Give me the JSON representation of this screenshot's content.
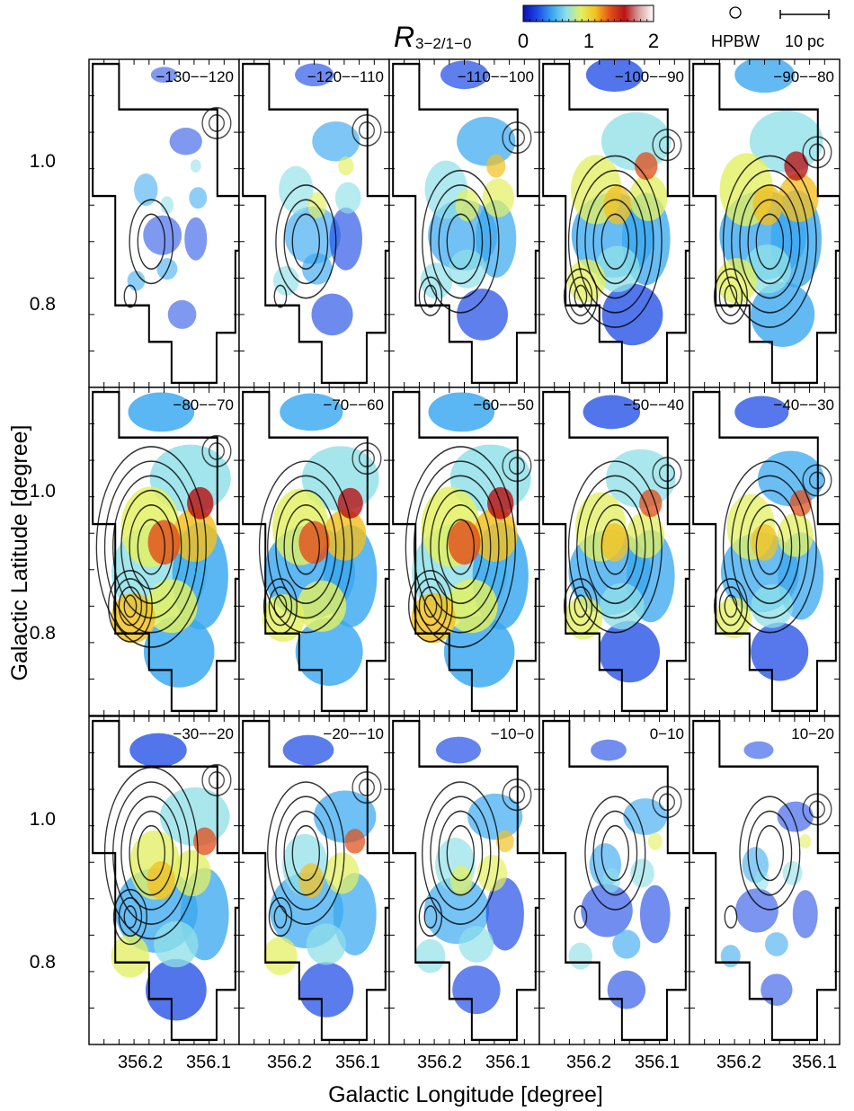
{
  "figure": {
    "colorbar": {
      "label_main": "R",
      "label_sub": "3−2/1−0",
      "ticks": [
        "0",
        "1",
        "2"
      ],
      "stops": [
        "#0a0fb5",
        "#1e4be6",
        "#39a8f0",
        "#8fe0e8",
        "#e3f060",
        "#f3c020",
        "#e0501c",
        "#b81416",
        "#d8a0a0",
        "#ffffff"
      ]
    },
    "beam_label": "HPBW",
    "scale_label": "10 pc",
    "y_axis_label": "Galactic Latitude [degree]",
    "x_axis_label": "Galactic Longitude [degree]",
    "y_ticks": [
      "1.0",
      "0.8"
    ],
    "x_ticks": [
      "356.2",
      "356.1"
    ],
    "panels": [
      {
        "label": "−130−−120",
        "intensity": 0.05
      },
      {
        "label": "−120−−110",
        "intensity": 0.25
      },
      {
        "label": "−110−−100",
        "intensity": 0.4
      },
      {
        "label": "−100−−90",
        "intensity": 0.55
      },
      {
        "label": "−90−−80",
        "intensity": 0.6
      },
      {
        "label": "−80−−70",
        "intensity": 0.7
      },
      {
        "label": "−70−−60",
        "intensity": 0.65
      },
      {
        "label": "−60−−50",
        "intensity": 0.7
      },
      {
        "label": "−50−−40",
        "intensity": 0.55
      },
      {
        "label": "−40−−30",
        "intensity": 0.5
      },
      {
        "label": "−30−−20",
        "intensity": 0.55
      },
      {
        "label": "−20−−10",
        "intensity": 0.45
      },
      {
        "label": "−10−0",
        "intensity": 0.35
      },
      {
        "label": "0−10",
        "intensity": 0.2
      },
      {
        "label": "10−20",
        "intensity": 0.1
      }
    ]
  }
}
